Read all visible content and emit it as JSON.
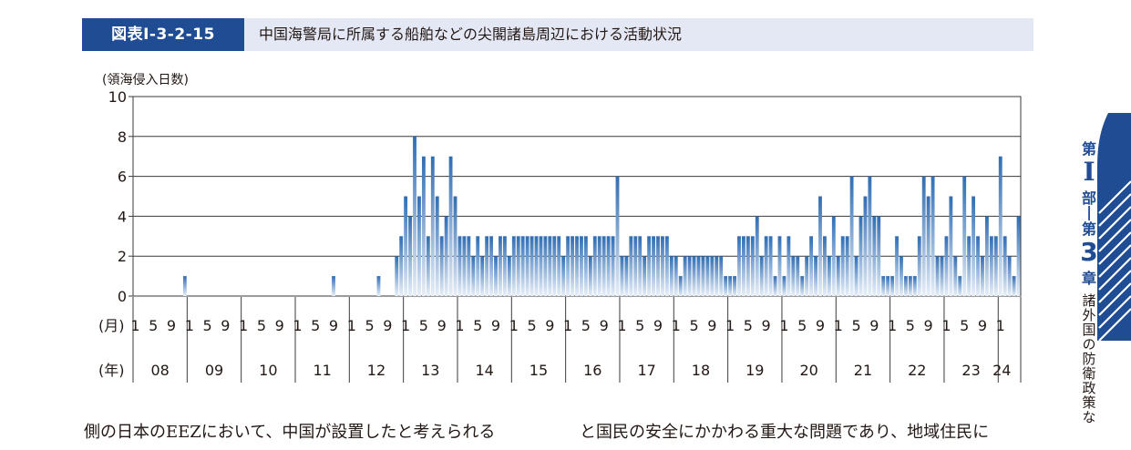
{
  "figure": {
    "label": "図表Ⅰ-3-2-15",
    "title": "中国海警局に所属する船舶などの尖閣諸島周辺における活動状況"
  },
  "side_tab": {
    "part_char1": "第",
    "part_numeral": "Ⅰ",
    "part_char2": "部",
    "chapter_char1": "第",
    "chapter_number": "3",
    "chapter_char2": "章",
    "chapter_title": "諸外国の防衛政策な"
  },
  "body_text": {
    "left": "側の日本のEEZにおいて、中国が設置したと考えられる",
    "right": "と国民の安全にかかわる重大な問題であり、地域住民に"
  },
  "chart_data": {
    "type": "bar",
    "ylabel": "(領海侵入日数)",
    "ylim": [
      0,
      10
    ],
    "yticks": [
      0,
      2,
      4,
      6,
      8,
      10
    ],
    "grid": true,
    "month_row_label": "(月)",
    "month_ticks": [
      "1",
      "5",
      "9"
    ],
    "year_row_label": "(年)",
    "years": [
      "08",
      "09",
      "10",
      "11",
      "12",
      "13",
      "14",
      "15",
      "16",
      "17",
      "18",
      "19",
      "20",
      "21",
      "22",
      "23",
      "24"
    ],
    "start": "2008-01",
    "end": "2024-01",
    "series": [
      {
        "values": [
          0,
          0,
          0,
          0,
          0,
          0,
          0,
          0,
          0,
          0,
          0,
          1,
          0,
          0,
          0,
          0,
          0,
          0,
          0,
          0,
          0,
          0,
          0,
          0,
          0,
          0,
          0,
          0,
          0,
          0,
          0,
          0,
          0,
          0,
          0,
          0,
          0,
          0,
          0,
          0,
          0,
          0,
          0,
          0,
          1,
          0,
          0,
          0,
          0,
          0,
          0,
          0,
          0,
          0,
          1,
          0,
          0,
          0,
          2,
          3,
          5,
          4,
          8,
          5,
          7,
          3,
          7,
          5,
          3,
          4,
          7,
          5,
          3,
          3,
          3,
          2,
          3,
          2,
          3,
          3,
          2,
          3,
          3,
          2,
          3,
          3,
          3,
          3,
          3,
          3,
          3,
          3,
          3,
          3,
          3,
          2,
          3,
          3,
          3,
          3,
          3,
          2,
          3,
          3,
          3,
          3,
          3,
          6,
          2,
          2,
          3,
          3,
          3,
          2,
          3,
          3,
          3,
          3,
          3,
          2,
          2,
          1,
          2,
          2,
          2,
          2,
          2,
          2,
          2,
          2,
          2,
          1,
          1,
          1,
          3,
          3,
          3,
          3,
          4,
          2,
          3,
          3,
          1,
          3,
          1,
          3,
          2,
          2,
          1,
          2,
          3,
          2,
          5,
          3,
          2,
          4,
          2,
          3,
          3,
          6,
          2,
          4,
          5,
          6,
          4,
          4,
          1,
          1,
          1,
          3,
          2,
          1,
          1,
          1,
          3,
          6,
          5,
          6,
          2,
          2,
          3,
          5,
          2,
          1,
          6,
          3,
          5,
          3,
          2,
          4,
          3,
          3,
          7,
          3,
          2,
          1,
          4
        ]
      }
    ]
  }
}
